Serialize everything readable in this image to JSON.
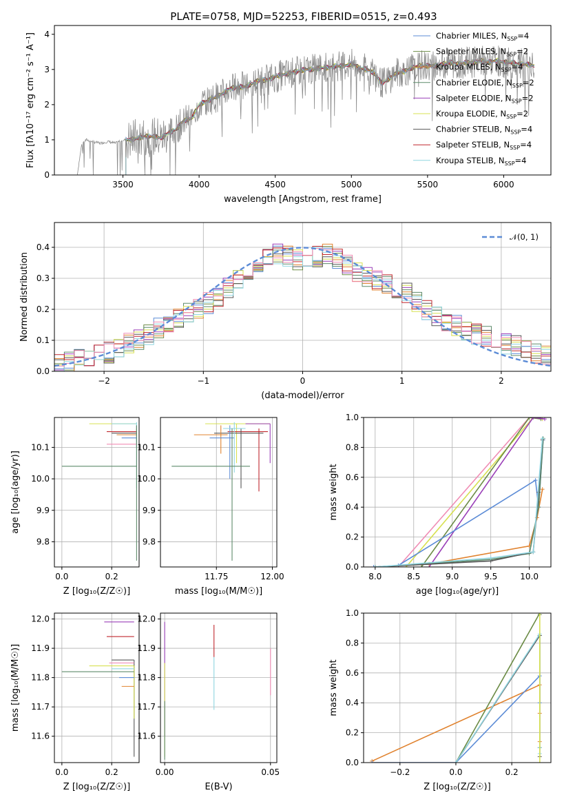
{
  "chart_data": [
    {
      "id": "spectrum",
      "type": "line",
      "title": "PLATE=0758, MJD=52253, FIBERID=0515, z=0.493",
      "xlabel": "wavelength [Angstrom, rest frame]",
      "ylabel": "Flux [fλ10⁻¹⁷ erg cm⁻² s⁻¹ A⁻¹]",
      "xlim": [
        3050,
        6310
      ],
      "ylim": [
        0,
        4.25
      ],
      "xticks": [
        3500,
        4000,
        4500,
        5000,
        5500,
        6000
      ],
      "yticks": [
        0,
        1,
        2,
        3,
        4
      ],
      "grid": false,
      "legend_position": "top-right",
      "legend": [
        {
          "label": "Chabrier MILES, N",
          "sub": "SSP",
          "eq": "=4",
          "color": "#5b8bd6"
        },
        {
          "label": "Salpeter MILES, N",
          "sub": "SSP",
          "eq": "=2",
          "color": "#6b8b45"
        },
        {
          "label": "Kroupa MILES, N",
          "sub": "SSP",
          "eq": "=4",
          "color": "#e0822e"
        },
        {
          "label": "Chabrier ELODIE, N",
          "sub": "SSP",
          "eq": "=2",
          "color": "#5d8a6a"
        },
        {
          "label": "Salpeter ELODIE, N",
          "sub": "SSP",
          "eq": "=2",
          "color": "#9a3fb8"
        },
        {
          "label": "Kroupa ELODIE, N",
          "sub": "SSP",
          "eq": "=2",
          "color": "#d7e050"
        },
        {
          "label": "Chabrier STELIB, N",
          "sub": "SSP",
          "eq": "=4",
          "color": "#555555"
        },
        {
          "label": "Salpeter STELIB, N",
          "sub": "SSP",
          "eq": "=4",
          "color": "#c0272d"
        },
        {
          "label": "Kroupa STELIB, N",
          "sub": "SSP",
          "eq": "=4",
          "color": "#8fd5e0"
        }
      ],
      "data_spectrum": {
        "x": [
          3200,
          3230,
          3260,
          3300,
          3350,
          3400,
          3450,
          3500,
          3550,
          3600,
          3650,
          3700,
          3750,
          3800,
          3850,
          3900,
          3950,
          4000,
          4050,
          4100,
          4150,
          4200,
          4250,
          4300,
          4350,
          4400,
          4450,
          4500,
          4550,
          4600,
          4650,
          4700,
          4750,
          4800,
          4850,
          4900,
          4950,
          5000,
          5050,
          5100,
          5150,
          5200,
          5250,
          5300,
          5350,
          5400,
          5450,
          5500,
          5550,
          5600,
          5650,
          5700,
          5750,
          5800,
          5850,
          5900,
          5950,
          6000,
          6050,
          6100,
          6150,
          6200
        ],
        "y": [
          0,
          0.9,
          1.0,
          0.95,
          0.9,
          0.95,
          0.9,
          1.0,
          1.0,
          1.05,
          1.1,
          1.1,
          1.05,
          1.2,
          1.3,
          1.55,
          1.6,
          2.0,
          2.1,
          2.2,
          2.3,
          2.45,
          2.5,
          2.5,
          2.6,
          2.7,
          2.7,
          2.8,
          2.85,
          2.9,
          2.95,
          3.0,
          3.0,
          3.05,
          3.05,
          3.1,
          3.1,
          3.15,
          3.05,
          3.0,
          2.9,
          2.6,
          2.75,
          2.9,
          2.95,
          3.05,
          3.1,
          3.1,
          3.1,
          3.15,
          3.2,
          3.15,
          3.2,
          3.2,
          3.25,
          3.2,
          3.25,
          3.2,
          3.2,
          3.15,
          3.15,
          3.1
        ]
      },
      "models_start_x": 3520
    },
    {
      "id": "residuals",
      "type": "line",
      "xlabel": "(data-model)/error",
      "ylabel": "Normed distribution",
      "xlim": [
        -2.5,
        2.5
      ],
      "ylim": [
        0,
        0.48
      ],
      "xticks": [
        -2,
        -1,
        0,
        1,
        2
      ],
      "yticks": [
        0.0,
        0.1,
        0.2,
        0.3,
        0.4
      ],
      "grid": true,
      "legend_position": "top-right",
      "legend": [
        {
          "label": "𝒩(0, 1)",
          "color": "#5b8bd6",
          "dash": true
        }
      ],
      "histogram_bins": [
        -2.5,
        -2.4,
        -2.3,
        -2.2,
        -2.1,
        -2.0,
        -1.9,
        -1.8,
        -1.7,
        -1.6,
        -1.5,
        -1.4,
        -1.3,
        -1.2,
        -1.1,
        -1.0,
        -0.9,
        -0.8,
        -0.7,
        -0.6,
        -0.5,
        -0.4,
        -0.3,
        -0.2,
        -0.1,
        0.0,
        0.1,
        0.2,
        0.3,
        0.4,
        0.5,
        0.6,
        0.7,
        0.8,
        0.9,
        1.0,
        1.1,
        1.2,
        1.3,
        1.4,
        1.5,
        1.6,
        1.7,
        1.8,
        1.9,
        2.0,
        2.1,
        2.2,
        2.3,
        2.4,
        2.5
      ],
      "histogram_mean": [
        0.02,
        0.03,
        0.04,
        0.05,
        0.05,
        0.06,
        0.07,
        0.09,
        0.1,
        0.12,
        0.14,
        0.16,
        0.17,
        0.19,
        0.2,
        0.22,
        0.24,
        0.27,
        0.3,
        0.32,
        0.34,
        0.36,
        0.38,
        0.37,
        0.36,
        0.35,
        0.37,
        0.38,
        0.36,
        0.34,
        0.32,
        0.3,
        0.29,
        0.28,
        0.27,
        0.25,
        0.22,
        0.2,
        0.18,
        0.16,
        0.15,
        0.13,
        0.12,
        0.11,
        0.1,
        0.09,
        0.08,
        0.07,
        0.06,
        0.05
      ]
    },
    {
      "id": "age-vs-Z",
      "type": "scatter",
      "xlabel": "Z [log₁₀(Z/Z☉)]",
      "ylabel": "age  [log₁₀(age/yr)]",
      "xlim": [
        -0.03,
        0.31
      ],
      "ylim": [
        9.72,
        10.195
      ],
      "xticks": [
        0.0,
        0.2
      ],
      "yticks": [
        9.8,
        9.9,
        10.0,
        10.1
      ],
      "grid": true,
      "errorbars": [
        {
          "x": 0.3,
          "y": 10.175,
          "xlo": 0.11,
          "ylo": 10.175,
          "yhi": 10.175,
          "color": "#d7e050"
        },
        {
          "x": 0.3,
          "y": 10.15,
          "xlo": 0.18,
          "ylo": 10.14,
          "yhi": 10.16,
          "color": "#c0272d"
        },
        {
          "x": 0.3,
          "y": 10.145,
          "xlo": 0.2,
          "ylo": 10.1,
          "yhi": 10.17,
          "color": "#555555"
        },
        {
          "x": 0.3,
          "y": 10.14,
          "xlo": 0.22,
          "ylo": 10.13,
          "yhi": 10.16,
          "color": "#e0822e"
        },
        {
          "x": 0.3,
          "y": 10.13,
          "xlo": 0.24,
          "ylo": 10.12,
          "yhi": 10.14,
          "color": "#5b8bd6"
        },
        {
          "x": 0.3,
          "y": 10.11,
          "xlo": 0.18,
          "ylo": 10.11,
          "yhi": 10.11,
          "color": "#f08cb4"
        },
        {
          "x": 0.3,
          "y": 10.175,
          "xlo": 0.2,
          "ylo": 9.97,
          "yhi": 10.18,
          "color": "#8fd5e0"
        },
        {
          "x": 0.3,
          "y": 10.04,
          "xlo": 0.0,
          "ylo": 9.74,
          "yhi": 10.17,
          "color": "#5d8a6a"
        }
      ]
    },
    {
      "id": "age-vs-mass",
      "type": "scatter",
      "xlabel": "mass [log₁₀(M/M☉)]",
      "xlim": [
        11.5,
        12.02
      ],
      "ylim": [
        9.72,
        10.195
      ],
      "xticks": [
        11.75,
        12.0
      ],
      "yticks": [
        9.8,
        9.9,
        10.0,
        10.1
      ],
      "grid": true,
      "errorbars": [
        {
          "x": 11.84,
          "y": 10.175,
          "xlo": 11.7,
          "xhi": 11.99,
          "ylo": 10.05,
          "yhi": 10.175,
          "color": "#d7e050"
        },
        {
          "x": 11.99,
          "y": 10.175,
          "xlo": 11.88,
          "xhi": 11.99,
          "ylo": 10.05,
          "yhi": 10.175,
          "color": "#9a3fb8"
        },
        {
          "x": 11.94,
          "y": 10.15,
          "xlo": 11.8,
          "xhi": 11.98,
          "ylo": 9.96,
          "yhi": 10.16,
          "color": "#c0272d"
        },
        {
          "x": 11.86,
          "y": 10.145,
          "xlo": 11.74,
          "xhi": 11.96,
          "ylo": 9.97,
          "yhi": 10.16,
          "color": "#555555"
        },
        {
          "x": 11.77,
          "y": 10.14,
          "xlo": 11.65,
          "xhi": 11.8,
          "ylo": 10.08,
          "yhi": 10.17,
          "color": "#e0822e"
        },
        {
          "x": 11.81,
          "y": 10.13,
          "xlo": 11.72,
          "xhi": 11.83,
          "ylo": 10.0,
          "yhi": 10.17,
          "color": "#5b8bd6"
        },
        {
          "x": 11.83,
          "y": 10.16,
          "xlo": 11.78,
          "xhi": 11.88,
          "ylo": 10.02,
          "yhi": 10.18,
          "color": "#8fd5e0"
        },
        {
          "x": 11.82,
          "y": 10.04,
          "xlo": 11.55,
          "xhi": 11.9,
          "ylo": 9.74,
          "yhi": 10.16,
          "color": "#5d8a6a"
        }
      ]
    },
    {
      "id": "weight-vs-age",
      "type": "line",
      "xlabel": "age  [log₁₀(age/yr)]",
      "ylabel": "mass weight",
      "xlim": [
        7.85,
        10.28
      ],
      "ylim": [
        0,
        1.0
      ],
      "xticks": [
        8.0,
        8.5,
        9.0,
        9.5,
        10.0
      ],
      "yticks": [
        0.0,
        0.2,
        0.4,
        0.6,
        0.8,
        1.0
      ],
      "grid": true,
      "series": [
        {
          "color": "#f08cb4",
          "x": [
            8.3,
            10.0,
            10.17
          ],
          "y": [
            0.0,
            1.0,
            0.99
          ]
        },
        {
          "color": "#d7e050",
          "x": [
            8.4,
            10.05,
            10.17
          ],
          "y": [
            0.0,
            1.0,
            0.99
          ]
        },
        {
          "color": "#6b8b45",
          "x": [
            8.6,
            10.0,
            10.15
          ],
          "y": [
            0.0,
            1.0,
            0.99
          ]
        },
        {
          "color": "#9a3fb8",
          "x": [
            8.7,
            10.05,
            10.2
          ],
          "y": [
            0.0,
            1.0,
            0.99
          ]
        },
        {
          "color": "#5b8bd6",
          "x": [
            7.98,
            8.3,
            10.08,
            10.12,
            10.18
          ],
          "y": [
            0.0,
            0.01,
            0.58,
            0.4,
            0.85
          ]
        },
        {
          "color": "#e0822e",
          "x": [
            8.0,
            8.7,
            10.0,
            10.1,
            10.17
          ],
          "y": [
            0.0,
            0.02,
            0.14,
            0.33,
            0.52
          ]
        },
        {
          "color": "#5d8a6a",
          "x": [
            8.0,
            9.5,
            10.0,
            10.12,
            10.18
          ],
          "y": [
            0.0,
            0.05,
            0.09,
            0.4,
            0.86
          ]
        },
        {
          "color": "#555555",
          "x": [
            8.0,
            9.5,
            10.05,
            10.12,
            10.17
          ],
          "y": [
            0.0,
            0.04,
            0.1,
            0.5,
            0.85
          ]
        },
        {
          "color": "#8fd5e0",
          "x": [
            8.0,
            9.5,
            10.05,
            10.17
          ],
          "y": [
            0.0,
            0.06,
            0.1,
            0.86
          ]
        }
      ]
    },
    {
      "id": "mass-vs-Z",
      "type": "scatter",
      "xlabel": "Z [log₁₀(Z/Z☉)]",
      "ylabel": "mass [log₁₀(M/M☉)]",
      "xlim": [
        -0.03,
        0.31
      ],
      "ylim": [
        11.51,
        12.02
      ],
      "xticks": [
        0.0,
        0.2
      ],
      "yticks": [
        11.6,
        11.7,
        11.8,
        11.9,
        12.0
      ],
      "grid": true,
      "errorbars": [
        {
          "x": 0.29,
          "y": 11.99,
          "xlo": 0.17,
          "ylo": 11.99,
          "yhi": 11.99,
          "color": "#9a3fb8"
        },
        {
          "x": 0.29,
          "y": 11.94,
          "xlo": 0.18,
          "ylo": 11.94,
          "yhi": 11.94,
          "color": "#c0272d"
        },
        {
          "x": 0.29,
          "y": 11.86,
          "xlo": 0.2,
          "ylo": 11.53,
          "yhi": 11.86,
          "color": "#555555"
        },
        {
          "x": 0.29,
          "y": 11.84,
          "xlo": 0.11,
          "ylo": 11.66,
          "yhi": 11.84,
          "color": "#d7e050"
        },
        {
          "x": 0.29,
          "y": 11.85,
          "xlo": 0.19,
          "ylo": 11.85,
          "yhi": 11.85,
          "color": "#f08cb4"
        },
        {
          "x": 0.29,
          "y": 11.82,
          "xlo": 0.0,
          "ylo": 11.82,
          "yhi": 11.82,
          "color": "#5d8a6a"
        },
        {
          "x": 0.29,
          "y": 11.83,
          "xlo": 0.2,
          "ylo": 11.83,
          "yhi": 11.83,
          "color": "#8fd5e0"
        },
        {
          "x": 0.29,
          "y": 11.8,
          "xlo": 0.23,
          "ylo": 11.8,
          "yhi": 11.8,
          "color": "#5b8bd6"
        },
        {
          "x": 0.29,
          "y": 11.77,
          "xlo": 0.24,
          "ylo": 11.77,
          "yhi": 11.77,
          "color": "#e0822e"
        }
      ]
    },
    {
      "id": "mass-vs-EBV",
      "type": "scatter",
      "xlabel": "E(B-V)",
      "xlim": [
        -0.002,
        0.053
      ],
      "ylim": [
        11.51,
        12.02
      ],
      "xticks": [
        0.0,
        0.05
      ],
      "yticks": [
        11.6,
        11.7,
        11.8,
        11.9,
        12.0
      ],
      "grid": true,
      "errorbars": [
        {
          "x": 0.0,
          "y": 11.85,
          "ylo": 11.6,
          "yhi": 11.99,
          "color": "#9a3fb8"
        },
        {
          "x": 0.0,
          "y": 11.83,
          "ylo": 11.53,
          "yhi": 11.85,
          "color": "#d7e050"
        },
        {
          "x": 0.0,
          "y": 11.62,
          "ylo": 11.52,
          "yhi": 11.72,
          "color": "#5d8a6a"
        },
        {
          "x": 0.0233,
          "y": 11.9,
          "ylo": 11.87,
          "yhi": 11.98,
          "color": "#c0272d"
        },
        {
          "x": 0.0233,
          "y": 11.8,
          "ylo": 11.69,
          "yhi": 11.87,
          "color": "#8fd5e0"
        },
        {
          "x": 0.05,
          "y": 11.86,
          "ylo": 11.74,
          "yhi": 11.9,
          "color": "#f08cb4"
        }
      ]
    },
    {
      "id": "weight-vs-Z",
      "type": "line",
      "xlabel": "Z [log₁₀(Z/Z☉)]",
      "ylabel": "mass weight",
      "xlim": [
        -0.33,
        0.34
      ],
      "ylim": [
        0,
        1.0
      ],
      "xticks": [
        -0.2,
        0.0,
        0.2
      ],
      "yticks": [
        0.0,
        0.2,
        0.4,
        0.6,
        0.8,
        1.0
      ],
      "grid": true,
      "series": [
        {
          "color": "#e0822e",
          "x": [
            -0.3,
            0.3,
            0.3,
            0.3
          ],
          "y": [
            0.01,
            0.52,
            0.33,
            0.14
          ]
        },
        {
          "color": "#5b8bd6",
          "x": [
            -0.3,
            0.0,
            0.3,
            0.3,
            0.3
          ],
          "y": [
            0.0,
            0.0,
            0.58,
            0.4,
            0.85
          ]
        },
        {
          "color": "#6b8b45",
          "x": [
            0.0,
            0.3,
            0.3
          ],
          "y": [
            0.0,
            1.0,
            0.99
          ]
        },
        {
          "color": "#555555",
          "x": [
            0.0,
            0.3,
            0.3,
            0.3
          ],
          "y": [
            0.0,
            0.85,
            0.1,
            0.04
          ]
        },
        {
          "color": "#8fd5e0",
          "x": [
            0.0,
            0.3,
            0.3,
            0.3
          ],
          "y": [
            0.0,
            0.86,
            0.1,
            0.06
          ]
        },
        {
          "color": "#d7e050",
          "x": [
            0.3,
            0.3
          ],
          "y": [
            0.0,
            1.0
          ]
        }
      ]
    }
  ]
}
